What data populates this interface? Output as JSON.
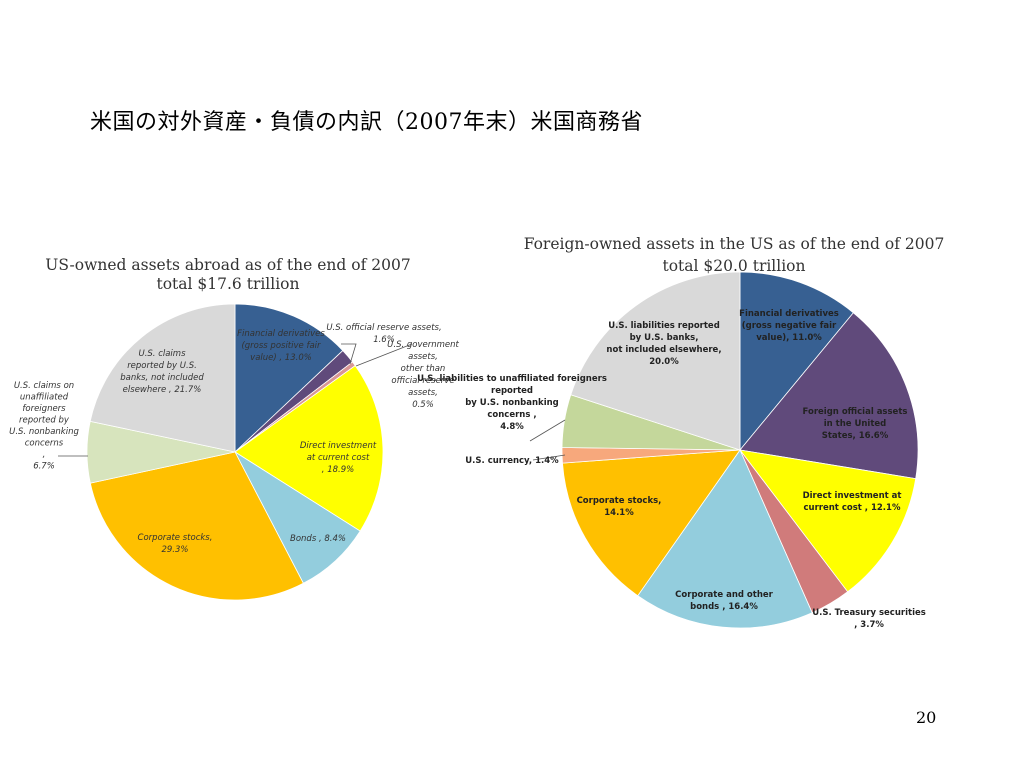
{
  "slide": {
    "title": "米国の対外資産・負債の内訳（2007年末）米国商務省",
    "page_number": "20"
  },
  "chart_data": [
    {
      "type": "pie",
      "title_line1": "US-owned assets abroad as of the end of 2007",
      "title_line2": "total $17.6 trillion",
      "slices": [
        {
          "label": "Financial derivatives (gross positive fair value) , 13.0%",
          "value": 13.0,
          "color": "#376092"
        },
        {
          "label": "U.S. official reserve assets, 1.6%",
          "value": 1.6,
          "color": "#604a7b"
        },
        {
          "label": "U.S. government assets, other than official reserve assets, 0.5%",
          "value": 0.5,
          "color": "#d99694"
        },
        {
          "label": "Direct investment at current cost , 18.9%",
          "value": 18.9,
          "color": "#ffff00"
        },
        {
          "label": "Bonds , 8.4%",
          "value": 8.4,
          "color": "#93cddd"
        },
        {
          "label": "Corporate stocks, 29.3%",
          "value": 29.3,
          "color": "#ffc000"
        },
        {
          "label": "U.S. claims on unaffiliated foreigners reported by U.S. nonbanking concerns , 6.7%",
          "value": 6.7,
          "color": "#d7e4bd"
        },
        {
          "label": "U.S. claims reported by U.S. banks, not included elsewhere , 21.7%",
          "value": 21.7,
          "color": "#d9d9d9"
        }
      ]
    },
    {
      "type": "pie",
      "title_line1": "Foreign-owned assets in the US as of the end of 2007",
      "title_line2": "total $20.0 trillion",
      "slices": [
        {
          "label": "Financial derivatives (gross negative fair value), 11.0%",
          "value": 11.0,
          "color": "#376092"
        },
        {
          "label": "Foreign official assets in the United States, 16.6%",
          "value": 16.6,
          "color": "#604a7b"
        },
        {
          "label": "Direct investment at current cost , 12.1%",
          "value": 12.1,
          "color": "#ffff00"
        },
        {
          "label": "U.S. Treasury securities , 3.7%",
          "value": 3.7,
          "color": "#d07b7b"
        },
        {
          "label": "Corporate and other bonds , 16.4%",
          "value": 16.4,
          "color": "#93cddd"
        },
        {
          "label": "Corporate stocks, 14.1%",
          "value": 14.1,
          "color": "#ffc000"
        },
        {
          "label": "U.S. currency, 1.4%",
          "value": 1.4,
          "color": "#f7a87c"
        },
        {
          "label": "U.S. liabilities to unaffiliated foreigners reported by U.S. nonbanking concerns , 4.8%",
          "value": 4.8,
          "color": "#c4d79b"
        },
        {
          "label": "U.S. liabilities reported by U.S. banks, not included elsewhere, 20.0%",
          "value": 20.0,
          "color": "#d9d9d9"
        }
      ]
    }
  ]
}
